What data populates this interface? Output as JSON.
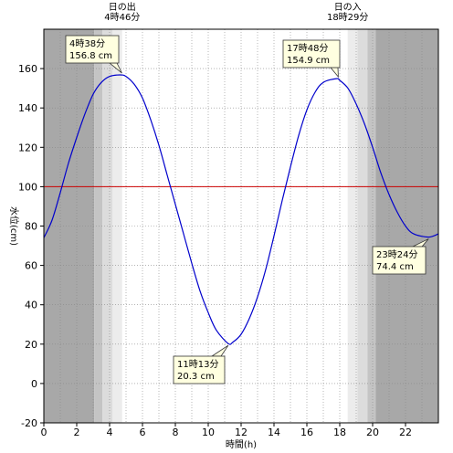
{
  "chart_data": {
    "type": "line",
    "xlabel": "時間(h)",
    "ylabel": "水位(cm)",
    "xlim": [
      0,
      24
    ],
    "ylim": [
      -20,
      180
    ],
    "x_ticks": [
      0,
      2,
      4,
      6,
      8,
      10,
      12,
      14,
      16,
      18,
      20,
      22
    ],
    "y_ticks": [
      -20,
      0,
      20,
      40,
      60,
      80,
      100,
      120,
      140,
      160
    ],
    "grid": "dotted",
    "reference_line": {
      "value": 100,
      "color": "#cc0000"
    },
    "line_color": "#0000cc",
    "sunrise": {
      "title": "日の出",
      "time": "4時46分",
      "hour": 4.767
    },
    "sunset": {
      "title": "日の入",
      "time": "18時29分",
      "hour": 18.483
    },
    "series": [
      {
        "x": [
          0,
          0.5,
          1,
          1.5,
          2,
          2.5,
          3,
          3.5,
          4,
          4.633,
          5,
          5.5,
          6,
          6.5,
          7,
          7.5,
          8,
          8.5,
          9,
          9.5,
          10,
          10.5,
          11.217,
          11.5,
          12,
          12.5,
          13,
          13.5,
          14,
          14.5,
          15,
          15.5,
          16,
          16.5,
          17,
          17.8,
          18,
          18.5,
          19,
          19.5,
          20,
          20.5,
          21,
          21.5,
          22,
          22.5,
          23.4,
          24
        ],
        "y": [
          74,
          83,
          97,
          112,
          125,
          137,
          147,
          153,
          156,
          156.8,
          156,
          152,
          145,
          134,
          121,
          106,
          91,
          76,
          61,
          47,
          36,
          27,
          20.3,
          21,
          25,
          33,
          44,
          58,
          75,
          93,
          110,
          126,
          139,
          148,
          153,
          154.9,
          154,
          150,
          142,
          132,
          120,
          107,
          96,
          87,
          80,
          76,
          74.4,
          76
        ]
      }
    ],
    "annotations": [
      {
        "time": "4時38分",
        "value": "156.8 cm",
        "x": 4.633,
        "y": 156.8
      },
      {
        "time": "11時13分",
        "value": "20.3 cm",
        "x": 11.217,
        "y": 20.3
      },
      {
        "time": "17時48分",
        "value": "154.9 cm",
        "x": 17.8,
        "y": 154.9
      },
      {
        "time": "23時24分",
        "value": "74.4 cm",
        "x": 23.4,
        "y": 74.4
      }
    ]
  }
}
